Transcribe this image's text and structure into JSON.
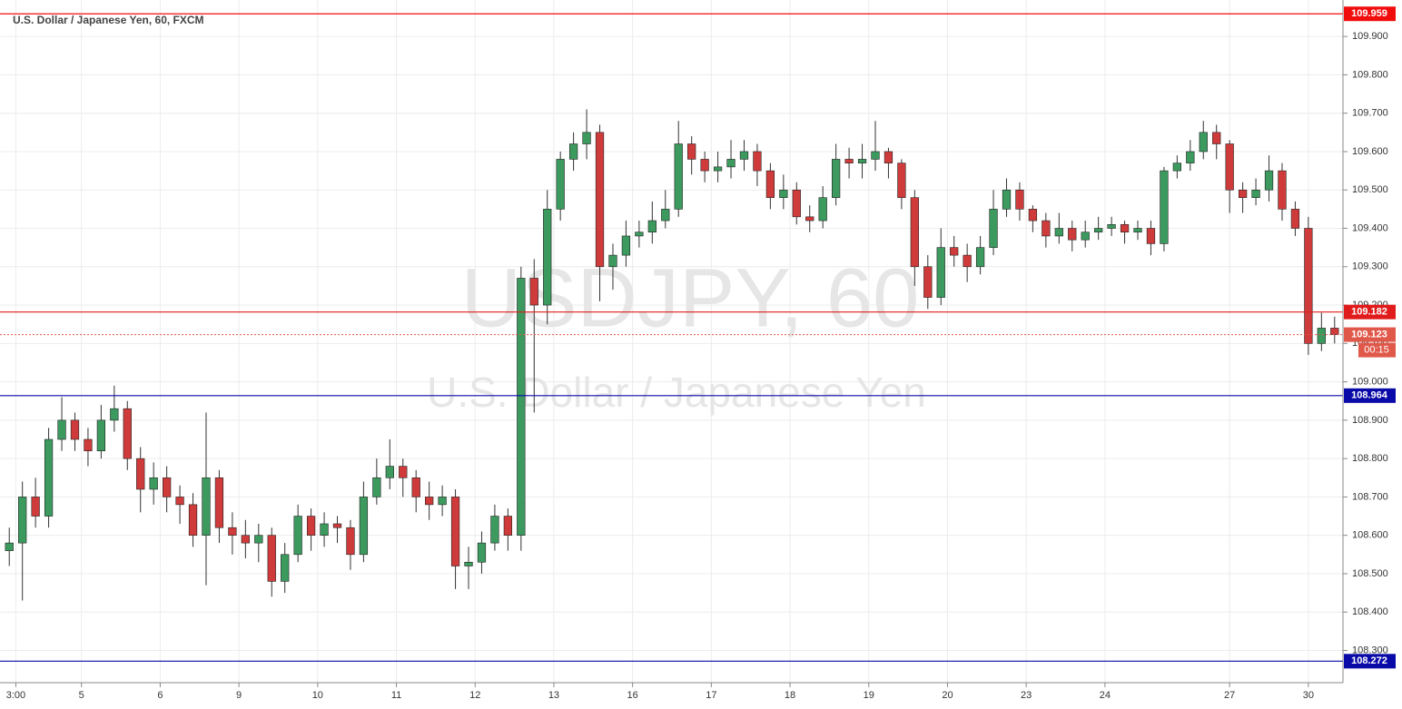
{
  "chart_data": {
    "type": "candlestick",
    "title": "U.S. Dollar / Japanese Yen, 60, FXCM",
    "watermark": "USDJPY, 60",
    "watermark_subtitle": "U.S. Dollar / Japanese Yen",
    "xlim": [
      0,
      102
    ],
    "xticks": [
      {
        "value": 1,
        "label": "3:00"
      },
      {
        "value": 6,
        "label": "5"
      },
      {
        "value": 12,
        "label": "6"
      },
      {
        "value": 18,
        "label": "9"
      },
      {
        "value": 24,
        "label": "10"
      },
      {
        "value": 30,
        "label": "11"
      },
      {
        "value": 36,
        "label": "12"
      },
      {
        "value": 42,
        "label": "13"
      },
      {
        "value": 48,
        "label": "16"
      },
      {
        "value": 54,
        "label": "17"
      },
      {
        "value": 60,
        "label": "18"
      },
      {
        "value": 66,
        "label": "19"
      },
      {
        "value": 72,
        "label": "20"
      },
      {
        "value": 78,
        "label": "23"
      },
      {
        "value": 84,
        "label": "24"
      },
      {
        "value": 93.5,
        "label": "27"
      },
      {
        "value": 99.5,
        "label": "30"
      }
    ],
    "ylim": [
      108.216,
      109.995
    ],
    "yticks": [
      {
        "value": 108.3,
        "label": "108.300"
      },
      {
        "value": 108.4,
        "label": "108.400"
      },
      {
        "value": 108.5,
        "label": "108.500"
      },
      {
        "value": 108.6,
        "label": "108.600"
      },
      {
        "value": 108.7,
        "label": "108.700"
      },
      {
        "value": 108.8,
        "label": "108.800"
      },
      {
        "value": 108.9,
        "label": "108.900"
      },
      {
        "value": 109.0,
        "label": "109.000"
      },
      {
        "value": 109.1,
        "label": "109.100"
      },
      {
        "value": 109.2,
        "label": "109.200"
      },
      {
        "value": 109.3,
        "label": "109.300"
      },
      {
        "value": 109.4,
        "label": "109.400"
      },
      {
        "value": 109.5,
        "label": "109.500"
      },
      {
        "value": 109.6,
        "label": "109.600"
      },
      {
        "value": 109.7,
        "label": "109.700"
      },
      {
        "value": 109.8,
        "label": "109.800"
      },
      {
        "value": 109.9,
        "label": "109.900"
      }
    ],
    "grid": true,
    "up_color": "#3c9a5f",
    "down_color": "#cf3b3b",
    "open": [
      108.56,
      108.58,
      108.7,
      108.65,
      108.85,
      108.9,
      108.85,
      108.82,
      108.9,
      108.93,
      108.8,
      108.72,
      108.75,
      108.7,
      108.68,
      108.6,
      108.75,
      108.62,
      108.6,
      108.58,
      108.6,
      108.48,
      108.55,
      108.65,
      108.6,
      108.63,
      108.62,
      108.55,
      108.7,
      108.75,
      108.78,
      108.75,
      108.7,
      108.68,
      108.7,
      108.52,
      108.53,
      108.58,
      108.65,
      108.6,
      109.27,
      109.2,
      109.45,
      109.58,
      109.62,
      109.65,
      109.3,
      109.33,
      109.38,
      109.39,
      109.42,
      109.45,
      109.62,
      109.58,
      109.55,
      109.56,
      109.58,
      109.6,
      109.55,
      109.48,
      109.5,
      109.43,
      109.42,
      109.48,
      109.58,
      109.57,
      109.58,
      109.6,
      109.57,
      109.48,
      109.3,
      109.22,
      109.35,
      109.33,
      109.3,
      109.35,
      109.45,
      109.5,
      109.45,
      109.42,
      109.38,
      109.4,
      109.37,
      109.39,
      109.4,
      109.41,
      109.39,
      109.4,
      109.36,
      109.55,
      109.57,
      109.6,
      109.65,
      109.62,
      109.5,
      109.48,
      109.5,
      109.55,
      109.45,
      109.4,
      109.1,
      109.14
    ],
    "high": [
      108.62,
      108.74,
      108.75,
      108.88,
      108.96,
      108.92,
      108.88,
      108.94,
      108.99,
      108.95,
      108.83,
      108.79,
      108.78,
      108.73,
      108.71,
      108.92,
      108.77,
      108.66,
      108.64,
      108.63,
      108.62,
      108.58,
      108.68,
      108.67,
      108.66,
      108.65,
      108.64,
      108.74,
      108.8,
      108.85,
      108.8,
      108.77,
      108.74,
      108.73,
      108.72,
      108.57,
      108.61,
      108.68,
      108.67,
      109.3,
      109.32,
      109.5,
      109.6,
      109.65,
      109.71,
      109.67,
      109.36,
      109.42,
      109.42,
      109.47,
      109.5,
      109.68,
      109.64,
      109.6,
      109.6,
      109.63,
      109.63,
      109.62,
      109.57,
      109.54,
      109.52,
      109.46,
      109.51,
      109.62,
      109.61,
      109.62,
      109.68,
      109.61,
      109.58,
      109.5,
      109.33,
      109.4,
      109.38,
      109.36,
      109.38,
      109.5,
      109.53,
      109.52,
      109.46,
      109.44,
      109.44,
      109.42,
      109.42,
      109.43,
      109.43,
      109.42,
      109.42,
      109.42,
      109.56,
      109.59,
      109.63,
      109.68,
      109.67,
      109.63,
      109.52,
      109.53,
      109.59,
      109.57,
      109.47,
      109.43,
      109.18,
      109.17
    ],
    "low": [
      108.52,
      108.43,
      108.62,
      108.62,
      108.82,
      108.82,
      108.78,
      108.8,
      108.87,
      108.77,
      108.66,
      108.68,
      108.66,
      108.63,
      108.57,
      108.47,
      108.58,
      108.55,
      108.54,
      108.53,
      108.44,
      108.45,
      108.53,
      108.56,
      108.57,
      108.58,
      108.51,
      108.53,
      108.68,
      108.72,
      108.7,
      108.66,
      108.64,
      108.65,
      108.46,
      108.46,
      108.5,
      108.56,
      108.56,
      108.56,
      108.92,
      109.15,
      109.42,
      109.55,
      109.58,
      109.21,
      109.24,
      109.3,
      109.35,
      109.36,
      109.4,
      109.43,
      109.54,
      109.52,
      109.52,
      109.53,
      109.55,
      109.51,
      109.45,
      109.45,
      109.41,
      109.39,
      109.4,
      109.46,
      109.53,
      109.53,
      109.55,
      109.53,
      109.45,
      109.25,
      109.19,
      109.2,
      109.3,
      109.26,
      109.28,
      109.33,
      109.43,
      109.42,
      109.39,
      109.35,
      109.36,
      109.34,
      109.35,
      109.37,
      109.38,
      109.36,
      109.37,
      109.33,
      109.34,
      109.53,
      109.55,
      109.58,
      109.58,
      109.44,
      109.44,
      109.46,
      109.47,
      109.42,
      109.38,
      109.07,
      109.08,
      109.1
    ],
    "close": [
      108.58,
      108.7,
      108.65,
      108.85,
      108.9,
      108.85,
      108.82,
      108.9,
      108.93,
      108.8,
      108.72,
      108.75,
      108.7,
      108.68,
      108.6,
      108.75,
      108.62,
      108.6,
      108.58,
      108.6,
      108.48,
      108.55,
      108.65,
      108.6,
      108.63,
      108.62,
      108.55,
      108.7,
      108.75,
      108.78,
      108.75,
      108.7,
      108.68,
      108.7,
      108.52,
      108.53,
      108.58,
      108.65,
      108.6,
      109.27,
      109.2,
      109.45,
      109.58,
      109.62,
      109.65,
      109.3,
      109.33,
      109.38,
      109.39,
      109.42,
      109.45,
      109.62,
      109.58,
      109.55,
      109.56,
      109.58,
      109.6,
      109.55,
      109.48,
      109.5,
      109.43,
      109.42,
      109.48,
      109.58,
      109.57,
      109.58,
      109.6,
      109.57,
      109.48,
      109.3,
      109.22,
      109.35,
      109.33,
      109.3,
      109.35,
      109.45,
      109.5,
      109.45,
      109.42,
      109.38,
      109.4,
      109.37,
      109.39,
      109.4,
      109.41,
      109.39,
      109.4,
      109.36,
      109.55,
      109.57,
      109.6,
      109.65,
      109.62,
      109.5,
      109.48,
      109.5,
      109.55,
      109.45,
      109.4,
      109.1,
      109.14,
      109.123
    ],
    "levels": [
      {
        "value": 109.959,
        "color": "#f20d0d"
      },
      {
        "value": 109.182,
        "color": "#e01b1b"
      },
      {
        "value": 108.964,
        "color": "#0a0aa8"
      },
      {
        "value": 108.272,
        "color": "#0a0aa8"
      }
    ],
    "last_price": {
      "value": 109.123,
      "color": "#e0584a",
      "countdown": "00:15"
    }
  }
}
